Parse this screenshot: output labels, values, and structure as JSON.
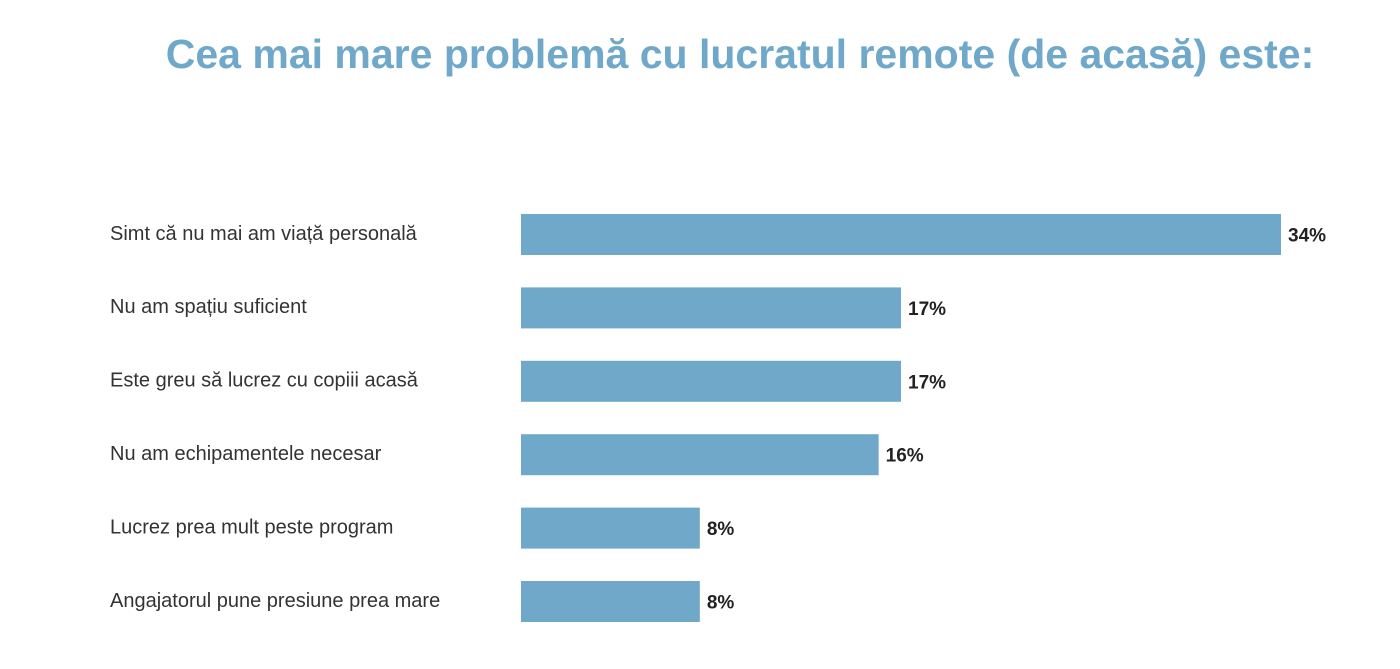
{
  "chart_data": {
    "type": "bar",
    "orientation": "horizontal",
    "title": "Cea mai mare problemă cu lucratul remote (de acasă) este:",
    "categories": [
      "Simt că nu mai am viață personală",
      "Nu am spațiu suficient",
      "Este greu să lucrez cu copiii acasă",
      "Nu am echipamentele necesar",
      "Lucrez prea mult peste program",
      "Angajatorul pune presiune prea mare"
    ],
    "values": [
      34,
      17,
      17,
      16,
      8,
      8
    ],
    "value_labels": [
      "34%",
      "17%",
      "17%",
      "16%",
      "8%",
      "8%"
    ],
    "color": "#6fa8c9"
  }
}
